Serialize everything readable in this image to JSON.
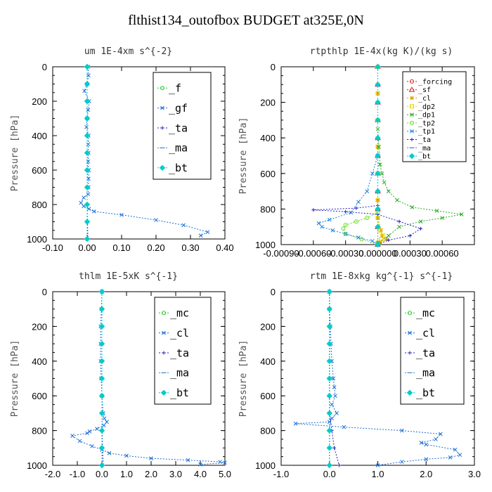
{
  "title": "flthist134_outofbox  BUDGET at325E,0N",
  "chart_data": [
    {
      "type": "line",
      "title": "um  1E-4xm s^{-2}",
      "xlabel": "",
      "ylabel": "Pressure [hPa]",
      "xlim": [
        -0.1,
        0.4
      ],
      "ylim": [
        1000,
        0
      ],
      "xticks": [
        "-0.10",
        "0.00",
        "0.10",
        "0.20",
        "0.30",
        "0.40"
      ],
      "xtick_values": [
        -0.1,
        0.0,
        0.1,
        0.2,
        0.3,
        0.4
      ],
      "yticks": [
        "0",
        "200",
        "400",
        "600",
        "800",
        "1000"
      ],
      "ytick_values": [
        0,
        200,
        400,
        600,
        800,
        1000
      ],
      "legend_position": "top-right",
      "legend_font": 15,
      "series": [
        {
          "name": "_f",
          "color": "#22cc22",
          "marker": "circle",
          "x": [
            0.0,
            0.0,
            0.0,
            0.0,
            0.0,
            0.0,
            0.0,
            0.0,
            0.0,
            0.0,
            0.0
          ],
          "y": [
            0,
            100,
            200,
            300,
            400,
            500,
            600,
            700,
            800,
            900,
            1000
          ]
        },
        {
          "name": "_gf",
          "color": "#1a6fd6",
          "marker": "x",
          "x": [
            0.003,
            0.004,
            0.0,
            -0.008,
            0.006,
            0.003,
            0.0,
            -0.002,
            0.004,
            0.003,
            0.004,
            0.003,
            0.005,
            0.004,
            0.004,
            0.003,
            -0.01,
            -0.018,
            -0.01,
            0.005,
            0.02,
            0.1,
            0.2,
            0.28,
            0.35,
            0.33
          ],
          "y": [
            0,
            50,
            100,
            140,
            200,
            250,
            300,
            350,
            400,
            450,
            500,
            550,
            600,
            650,
            700,
            740,
            760,
            790,
            810,
            825,
            840,
            860,
            890,
            920,
            960,
            980
          ]
        },
        {
          "name": "_ta",
          "color": "#2020c0",
          "marker": "plus",
          "x": [
            0.0,
            0.0,
            0.0,
            0.0,
            0.0,
            0.0,
            0.001,
            0.0,
            0.0,
            0.001,
            0.002
          ],
          "y": [
            0,
            100,
            200,
            300,
            400,
            500,
            600,
            700,
            800,
            900,
            1000
          ]
        },
        {
          "name": "_ma",
          "color": "#4488cc",
          "marker": "dash",
          "x": [
            0.0,
            0.0,
            0.0,
            0.0,
            0.0,
            0.0,
            0.0,
            0.0,
            0.0,
            0.0,
            0.0
          ],
          "y": [
            0,
            100,
            200,
            300,
            400,
            500,
            600,
            700,
            800,
            900,
            1000
          ]
        },
        {
          "name": "_bt",
          "color": "#00cccc",
          "marker": "diamond",
          "x": [
            0.0,
            0.0,
            0.0,
            0.0,
            0.0,
            0.0,
            0.0,
            0.0,
            0.0,
            0.0,
            0.0
          ],
          "y": [
            0,
            100,
            200,
            300,
            400,
            500,
            600,
            700,
            800,
            900,
            1000
          ]
        }
      ]
    },
    {
      "type": "line",
      "title": "rtpthlp  1E-4x(kg K)/(kg s)",
      "xlabel": "",
      "ylabel": "Pressure [hPa]",
      "xlim": [
        -0.0009,
        0.0009
      ],
      "ylim": [
        1000,
        0
      ],
      "xticks": [
        "-0.00090",
        "-0.00060",
        "-0.00030",
        "0.000000",
        "0.00030",
        "0.00060"
      ],
      "xtick_values": [
        -0.0009,
        -0.0006,
        -0.0003,
        0.0,
        0.0003,
        0.0006
      ],
      "yticks": [
        "0",
        "200",
        "400",
        "600",
        "800",
        "1000"
      ],
      "ytick_values": [
        0,
        200,
        400,
        600,
        800,
        1000
      ],
      "legend_position": "top-right",
      "legend_font": 10,
      "series": [
        {
          "name": "_forcing",
          "color": "#dd2222",
          "marker": "circle",
          "x": [
            0,
            0,
            0,
            0,
            0,
            0,
            0,
            0,
            0,
            0,
            0
          ],
          "y": [
            0,
            100,
            200,
            300,
            400,
            500,
            600,
            700,
            800,
            900,
            1000
          ]
        },
        {
          "name": "_sf",
          "color": "#dd2222",
          "marker": "triangle",
          "x": [
            0,
            0,
            0,
            0,
            0,
            0,
            0,
            0,
            0,
            0,
            0
          ],
          "y": [
            0,
            100,
            200,
            300,
            400,
            500,
            600,
            700,
            800,
            900,
            1000
          ]
        },
        {
          "name": "_cl",
          "color": "#e0a000",
          "marker": "star",
          "x": [
            0,
            0,
            0,
            0,
            0,
            0,
            0,
            3e-05,
            4e-05,
            8e-05,
            2e-05
          ],
          "y": [
            0,
            150,
            300,
            450,
            600,
            750,
            850,
            920,
            950,
            970,
            990
          ]
        },
        {
          "name": "_dp2",
          "color": "#e6d200",
          "marker": "square",
          "x": [
            0,
            0,
            0,
            0,
            0,
            0,
            0,
            2e-05,
            5e-05,
            3e-05,
            0.0
          ],
          "y": [
            0,
            150,
            300,
            450,
            600,
            750,
            850,
            920,
            950,
            970,
            990
          ]
        },
        {
          "name": "_dp1",
          "color": "#22aa22",
          "marker": "x",
          "x": [
            0.0,
            1e-05,
            2e-05,
            4e-05,
            6e-05,
            0.0001,
            0.00018,
            0.00032,
            0.00055,
            0.00078,
            0.0006,
            0.0004,
            0.0002,
            0.0001,
            0.0
          ],
          "y": [
            350,
            450,
            550,
            600,
            650,
            700,
            750,
            790,
            810,
            830,
            850,
            870,
            900,
            950,
            990
          ]
        },
        {
          "name": "_tp2",
          "color": "#66dd22",
          "marker": "circle",
          "x": [
            0.0,
            -0.0001,
            -0.0002,
            -0.0003,
            -0.00032,
            -0.0003,
            -0.00015,
            0.0
          ],
          "y": [
            820,
            850,
            870,
            890,
            910,
            940,
            970,
            1000
          ]
        },
        {
          "name": "_tp1",
          "color": "#1a7fdd",
          "marker": "x",
          "x": [
            0.0,
            -5e-05,
            -0.0001,
            -0.00018,
            -0.00025,
            -0.00045,
            -0.00055,
            -0.00052,
            -0.00042,
            -0.0003,
            -0.00018,
            -5e-05,
            0.0
          ],
          "y": [
            500,
            600,
            700,
            760,
            820,
            860,
            880,
            900,
            920,
            940,
            960,
            980,
            1000
          ]
        },
        {
          "name": "_ta",
          "color": "#2020c0",
          "marker": "plus",
          "x": [
            0.0,
            -0.0002,
            -0.0006,
            -0.0003,
            0.0,
            0.0002,
            0.0004,
            0.0003,
            0.0001,
            0.0
          ],
          "y": [
            780,
            795,
            805,
            815,
            830,
            870,
            910,
            950,
            975,
            1000
          ]
        },
        {
          "name": "_ma",
          "color": "#4488cc",
          "marker": "dash",
          "x": [
            0,
            0,
            0,
            0,
            0,
            0,
            0,
            0,
            0,
            0,
            0
          ],
          "y": [
            0,
            100,
            200,
            300,
            400,
            500,
            600,
            700,
            800,
            900,
            1000
          ]
        },
        {
          "name": "_bt",
          "color": "#00cccc",
          "marker": "diamond",
          "x": [
            0,
            0,
            0,
            0,
            0,
            0,
            0,
            0,
            0,
            0,
            0
          ],
          "y": [
            0,
            100,
            200,
            300,
            400,
            500,
            600,
            700,
            800,
            900,
            1000
          ]
        }
      ]
    },
    {
      "type": "line",
      "title": "thlm  1E-5xK s^{-1}",
      "xlabel": "",
      "ylabel": "Pressure [hPa]",
      "xlim": [
        -2.0,
        5.0
      ],
      "ylim": [
        1000,
        0
      ],
      "xticks": [
        "-2.0",
        "-1.0",
        "0.0",
        "1.0",
        "2.0",
        "3.0",
        "4.0",
        "5.0"
      ],
      "xtick_values": [
        -2,
        -1,
        0,
        1,
        2,
        3,
        4,
        5
      ],
      "yticks": [
        "0",
        "200",
        "400",
        "600",
        "800",
        "1000"
      ],
      "ytick_values": [
        0,
        200,
        400,
        600,
        800,
        1000
      ],
      "legend_position": "top-right",
      "legend_font": 15,
      "series": [
        {
          "name": "_mc",
          "color": "#22cc22",
          "marker": "circle",
          "x": [
            0,
            0,
            0,
            0,
            0,
            0,
            0,
            0,
            0,
            0,
            0
          ],
          "y": [
            0,
            100,
            200,
            300,
            400,
            500,
            600,
            700,
            800,
            900,
            1000
          ]
        },
        {
          "name": "_cl",
          "color": "#1a6fd6",
          "marker": "x",
          "x": [
            0.0,
            -0.02,
            -0.05,
            -0.05,
            -0.05,
            -0.03,
            0.0,
            0.05,
            0.1,
            0.2,
            0.08,
            -0.2,
            -0.5,
            -0.6,
            -1.2,
            -0.9,
            -0.4,
            0.0,
            0.3,
            1.0,
            2.0,
            3.5,
            4.8,
            5.0,
            4.0
          ],
          "y": [
            0,
            100,
            200,
            300,
            400,
            500,
            600,
            700,
            730,
            750,
            770,
            790,
            805,
            815,
            830,
            860,
            890,
            910,
            930,
            945,
            960,
            970,
            980,
            985,
            995
          ]
        },
        {
          "name": "_ta",
          "color": "#2020c0",
          "marker": "plus",
          "x": [
            0,
            0,
            0,
            0,
            0,
            0,
            0,
            0,
            0.01,
            0.02,
            0.05
          ],
          "y": [
            0,
            100,
            200,
            300,
            400,
            500,
            600,
            700,
            800,
            900,
            1000
          ]
        },
        {
          "name": "_ma",
          "color": "#4488cc",
          "marker": "dash",
          "x": [
            0,
            0,
            0,
            0,
            0,
            0,
            0,
            0,
            0,
            0,
            0
          ],
          "y": [
            0,
            100,
            200,
            300,
            400,
            500,
            600,
            700,
            800,
            900,
            1000
          ]
        },
        {
          "name": "_bt",
          "color": "#00cccc",
          "marker": "diamond",
          "x": [
            0,
            0,
            0,
            0,
            0,
            0,
            0,
            0,
            0,
            0,
            0
          ],
          "y": [
            0,
            100,
            200,
            300,
            400,
            500,
            600,
            700,
            800,
            900,
            1000
          ]
        }
      ]
    },
    {
      "type": "line",
      "title": "rtm  1E-8xkg kg^{-1} s^{-1}",
      "xlabel": "",
      "ylabel": "Pressure [hPa]",
      "xlim": [
        -1.0,
        3.0
      ],
      "ylim": [
        1000,
        0
      ],
      "xticks": [
        "-1.0",
        "0.0",
        "1.0",
        "2.0",
        "3.0"
      ],
      "xtick_values": [
        -1,
        0,
        1,
        2,
        3
      ],
      "yticks": [
        "0",
        "200",
        "400",
        "600",
        "800",
        "1000"
      ],
      "ytick_values": [
        0,
        200,
        400,
        600,
        800,
        1000
      ],
      "legend_position": "top-right",
      "legend_font": 15,
      "series": [
        {
          "name": "_mc",
          "color": "#22cc22",
          "marker": "circle",
          "x": [
            0,
            0,
            0,
            0,
            0,
            0,
            0,
            0,
            0,
            0,
            0
          ],
          "y": [
            0,
            100,
            200,
            300,
            400,
            500,
            600,
            700,
            800,
            900,
            1000
          ]
        },
        {
          "name": "_cl",
          "color": "#1a6fd6",
          "marker": "x",
          "x": [
            0.0,
            0.0,
            0.02,
            0.03,
            0.05,
            0.08,
            0.1,
            0.12,
            0.05,
            0.15,
            0.05,
            0.0,
            -0.7,
            0.3,
            1.5,
            2.3,
            2.2,
            1.9,
            2.0,
            2.6,
            2.7,
            2.5,
            2.0,
            1.5,
            1.0
          ],
          "y": [
            0,
            100,
            200,
            300,
            400,
            500,
            550,
            600,
            650,
            700,
            730,
            750,
            760,
            780,
            800,
            820,
            850,
            870,
            880,
            910,
            940,
            955,
            965,
            980,
            1000
          ]
        },
        {
          "name": "_ta",
          "color": "#2020c0",
          "marker": "plus",
          "x": [
            0,
            0,
            0,
            0,
            0,
            0,
            0,
            0,
            0.05,
            0.1,
            0.2
          ],
          "y": [
            0,
            100,
            200,
            300,
            400,
            500,
            600,
            700,
            800,
            900,
            1000
          ]
        },
        {
          "name": "_ma",
          "color": "#4488cc",
          "marker": "dash",
          "x": [
            0,
            0,
            0,
            0,
            0,
            0,
            0,
            0,
            0,
            0,
            0
          ],
          "y": [
            0,
            100,
            200,
            300,
            400,
            500,
            600,
            700,
            800,
            900,
            1000
          ]
        },
        {
          "name": "_bt",
          "color": "#00cccc",
          "marker": "diamond",
          "x": [
            0,
            0,
            0,
            0,
            0,
            0,
            0,
            0,
            0,
            0,
            0
          ],
          "y": [
            0,
            100,
            200,
            300,
            400,
            500,
            600,
            700,
            800,
            900,
            1000
          ]
        }
      ]
    }
  ]
}
